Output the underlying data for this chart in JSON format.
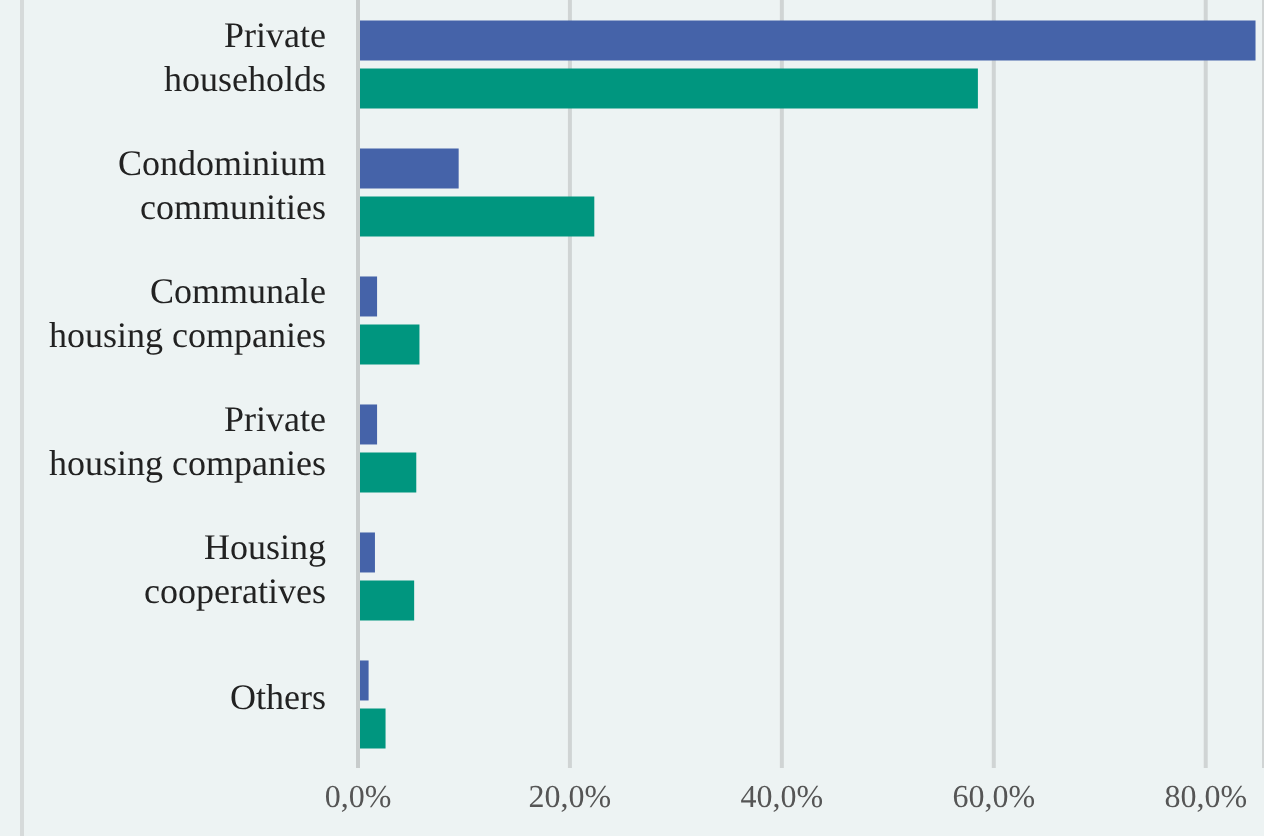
{
  "chart_data": {
    "type": "bar",
    "orientation": "horizontal",
    "categories": [
      "Private households",
      "Condominium communities",
      "Communale housing companies",
      "Private housing companies",
      "Housing cooperatives",
      "Others"
    ],
    "series": [
      {
        "color": "#4563a9",
        "values": [
          84.7,
          9.5,
          1.8,
          1.8,
          1.6,
          1.0
        ]
      },
      {
        "color": "#00967f",
        "values": [
          58.5,
          22.3,
          5.8,
          5.5,
          5.3,
          2.6
        ]
      }
    ],
    "xlim": [
      0,
      85.5
    ],
    "xticks": [
      {
        "value": 0,
        "label": "0,0%"
      },
      {
        "value": 20,
        "label": "20,0%"
      },
      {
        "value": 40,
        "label": "40,0%"
      },
      {
        "value": 60,
        "label": "60,0%"
      },
      {
        "value": 80,
        "label": "80,0%"
      }
    ],
    "grid": "x",
    "legend": false
  }
}
